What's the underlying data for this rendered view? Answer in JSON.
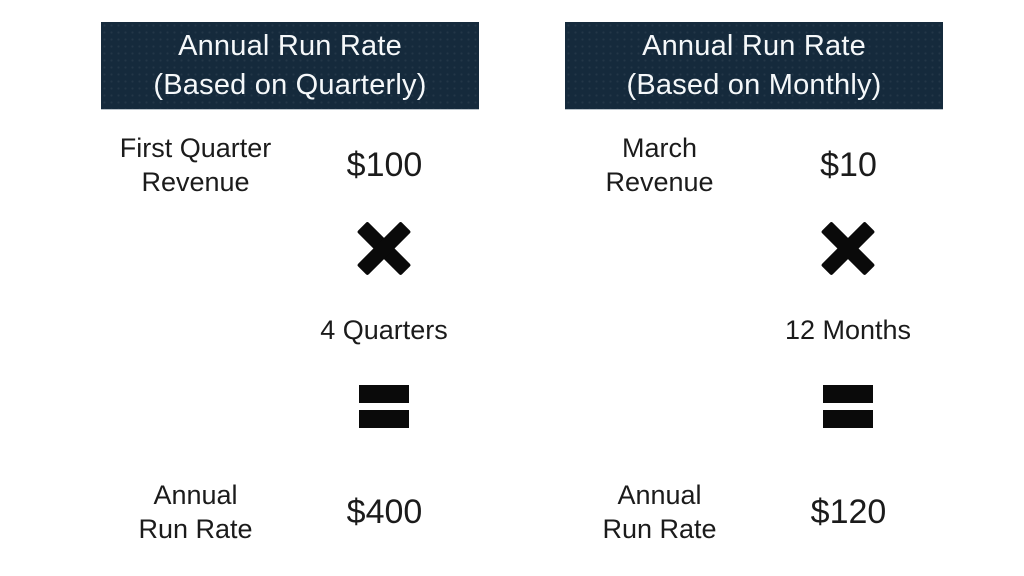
{
  "diagram_title": "Annual Run Rate comparison",
  "colors": {
    "background": "#ffffff",
    "header_bg": "#152a3c",
    "header_text": "#f5f8fa",
    "body_text": "#1b1b1b",
    "operator": "#0a0a0a"
  },
  "columns": [
    {
      "id": "quarterly",
      "header": {
        "line1": "Annual Run Rate",
        "line2": "(Based on Quarterly)"
      },
      "input": {
        "label_line1": "First Quarter",
        "label_line2": "Revenue",
        "value": "$100"
      },
      "multiply_icon": "heavy-multiplication-x-icon",
      "multiplier_label": "4 Quarters",
      "equals_icon": "heavy-equals-icon",
      "result": {
        "label_line1": "Annual",
        "label_line2": "Run Rate",
        "value": "$400"
      }
    },
    {
      "id": "monthly",
      "header": {
        "line1": "Annual Run Rate",
        "line2": "(Based on Monthly)"
      },
      "input": {
        "label_line1": "March",
        "label_line2": "Revenue",
        "value": "$10"
      },
      "multiply_icon": "heavy-multiplication-x-icon",
      "multiplier_label": "12 Months",
      "equals_icon": "heavy-equals-icon",
      "result": {
        "label_line1": "Annual",
        "label_line2": "Run Rate",
        "value": "$120"
      }
    }
  ]
}
